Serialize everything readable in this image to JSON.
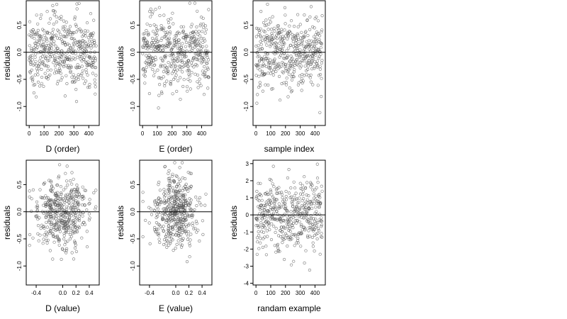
{
  "chart_data": [
    {
      "type": "scatter",
      "xlabel": "D (order)",
      "ylabel": "residuals",
      "xlim": [
        -20,
        470
      ],
      "ylim": [
        -1.35,
        0.95
      ],
      "xticks": [
        0,
        100,
        200,
        300,
        400
      ],
      "xtick_labels": [
        "0",
        "100",
        "200",
        "300",
        "400"
      ],
      "yticks": [
        -1.0,
        -0.5,
        0.0,
        0.5
      ],
      "ytick_labels": [
        "-1.0",
        "-0.5",
        "0.0",
        "0.5"
      ],
      "y_tick_rotated": true,
      "hline": 0,
      "marker_color": "#555555",
      "x_kind": "index",
      "n": 450,
      "y_sd": 0.33,
      "x_sd": 0
    },
    {
      "type": "scatter",
      "xlabel": "E (order)",
      "ylabel": "residuals",
      "xlim": [
        -20,
        470
      ],
      "ylim": [
        -1.35,
        0.95
      ],
      "xticks": [
        0,
        100,
        200,
        300,
        400
      ],
      "xtick_labels": [
        "0",
        "100",
        "200",
        "300",
        "400"
      ],
      "yticks": [
        -1.0,
        -0.5,
        0.0,
        0.5
      ],
      "ytick_labels": [
        "-1.0",
        "-0.5",
        "0.0",
        "0.5"
      ],
      "y_tick_rotated": true,
      "hline": 0,
      "marker_color": "#555555",
      "x_kind": "index",
      "n": 450,
      "y_sd": 0.33,
      "x_sd": 0
    },
    {
      "type": "scatter",
      "xlabel": "sample index",
      "ylabel": "residuals",
      "xlim": [
        -20,
        470
      ],
      "ylim": [
        -1.35,
        0.95
      ],
      "xticks": [
        0,
        100,
        200,
        300,
        400
      ],
      "xtick_labels": [
        "0",
        "100",
        "200",
        "300",
        "400"
      ],
      "yticks": [
        -1.0,
        -0.5,
        0.0,
        0.5
      ],
      "ytick_labels": [
        "-1.0",
        "-0.5",
        "0.0",
        "0.5"
      ],
      "y_tick_rotated": true,
      "hline": 0,
      "marker_color": "#555555",
      "x_kind": "index",
      "n": 450,
      "y_sd": 0.33,
      "x_sd": 0
    },
    {
      "type": "scatter",
      "xlabel": "D (value)",
      "ylabel": "residuals",
      "xlim": [
        -0.55,
        0.55
      ],
      "ylim": [
        -1.35,
        0.95
      ],
      "xticks": [
        -0.4,
        0.0,
        0.2,
        0.4
      ],
      "xtick_labels": [
        "-0.4",
        "0.0",
        "0.2",
        "0.4"
      ],
      "yticks": [
        -1.0,
        -0.5,
        0.0,
        0.5
      ],
      "ytick_labels": [
        "-1.0",
        "-0.5",
        "0.0",
        "0.5"
      ],
      "y_tick_rotated": true,
      "hline": 0,
      "marker_color": "#555555",
      "x_kind": "value",
      "n": 450,
      "y_sd": 0.33,
      "x_sd": 0.2
    },
    {
      "type": "scatter",
      "xlabel": "E (value)",
      "ylabel": "residuals",
      "xlim": [
        -0.55,
        0.55
      ],
      "ylim": [
        -1.35,
        0.95
      ],
      "xticks": [
        -0.4,
        0.0,
        0.2,
        0.4
      ],
      "xtick_labels": [
        "-0.4",
        "0.0",
        "0.2",
        "0.4"
      ],
      "yticks": [
        -1.0,
        -0.5,
        0.0,
        0.5
      ],
      "ytick_labels": [
        "-1.0",
        "-0.5",
        "0.0",
        "0.5"
      ],
      "y_tick_rotated": true,
      "hline": 0,
      "marker_color": "#555555",
      "x_kind": "value",
      "n": 450,
      "y_sd": 0.33,
      "x_sd": 0.17
    },
    {
      "type": "scatter",
      "xlabel": "randam example",
      "ylabel": "residuals",
      "xlim": [
        -20,
        470
      ],
      "ylim": [
        -4.1,
        3.2
      ],
      "xticks": [
        0,
        100,
        200,
        300,
        400
      ],
      "xtick_labels": [
        "0",
        "100",
        "200",
        "300",
        "400"
      ],
      "yticks": [
        -4,
        -3,
        -2,
        -1,
        0,
        1,
        2,
        3
      ],
      "ytick_labels": [
        "-4",
        "-3",
        "-2",
        "-1",
        "0",
        "1",
        "2",
        "3"
      ],
      "y_tick_rotated": false,
      "hline": 0,
      "marker_color": "#555555",
      "x_kind": "index",
      "n": 450,
      "y_sd": 1.0,
      "x_sd": 0
    }
  ]
}
